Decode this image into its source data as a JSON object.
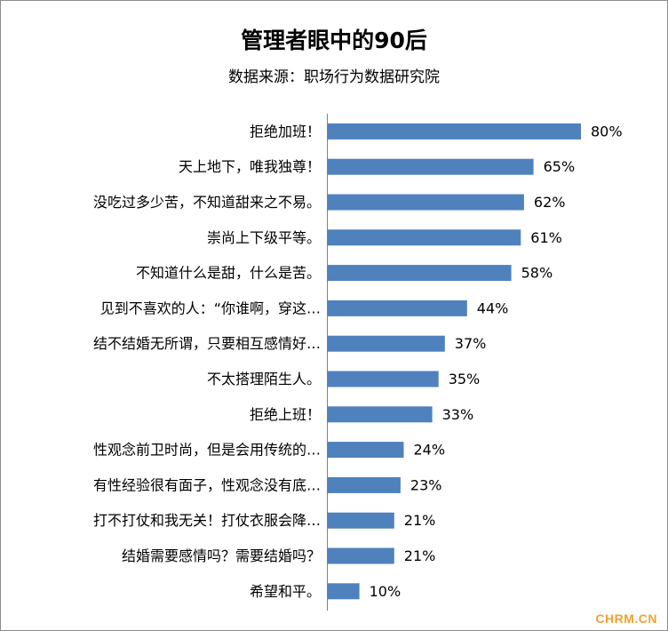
{
  "chart_data": {
    "type": "bar",
    "orientation": "horizontal",
    "title": "管理者眼中的90后",
    "subtitle": "数据来源：职场行为数据研究院",
    "categories": [
      "拒绝加班！",
      "天上地下，唯我独尊！",
      "没吃过多少苦，不知道甜来之不易。",
      "崇尚上下级平等。",
      "不知道什么是甜，什么是苦。",
      "见到不喜欢的人：“你谁啊，穿这…",
      "结不结婚无所谓，只要相互感情好…",
      "不太搭理陌生人。",
      "拒绝上班！",
      "性观念前卫时尚，但是会用传统的…",
      "有性经验很有面子，性观念没有底…",
      "打不打仗和我无关！打仗衣服会降…",
      "结婚需要感情吗？需要结婚吗？",
      "希望和平。"
    ],
    "values": [
      80,
      65,
      62,
      61,
      58,
      44,
      37,
      35,
      33,
      24,
      23,
      21,
      21,
      10
    ],
    "value_labels": [
      "80%",
      "65%",
      "62%",
      "61%",
      "58%",
      "44%",
      "37%",
      "35%",
      "33%",
      "24%",
      "23%",
      "21%",
      "21%",
      "10%"
    ],
    "unit": "%",
    "xlim": [
      0,
      80
    ],
    "bar_color": "#4f81bd",
    "grid": false,
    "legend": "none"
  },
  "watermark": "CHRM.CN"
}
